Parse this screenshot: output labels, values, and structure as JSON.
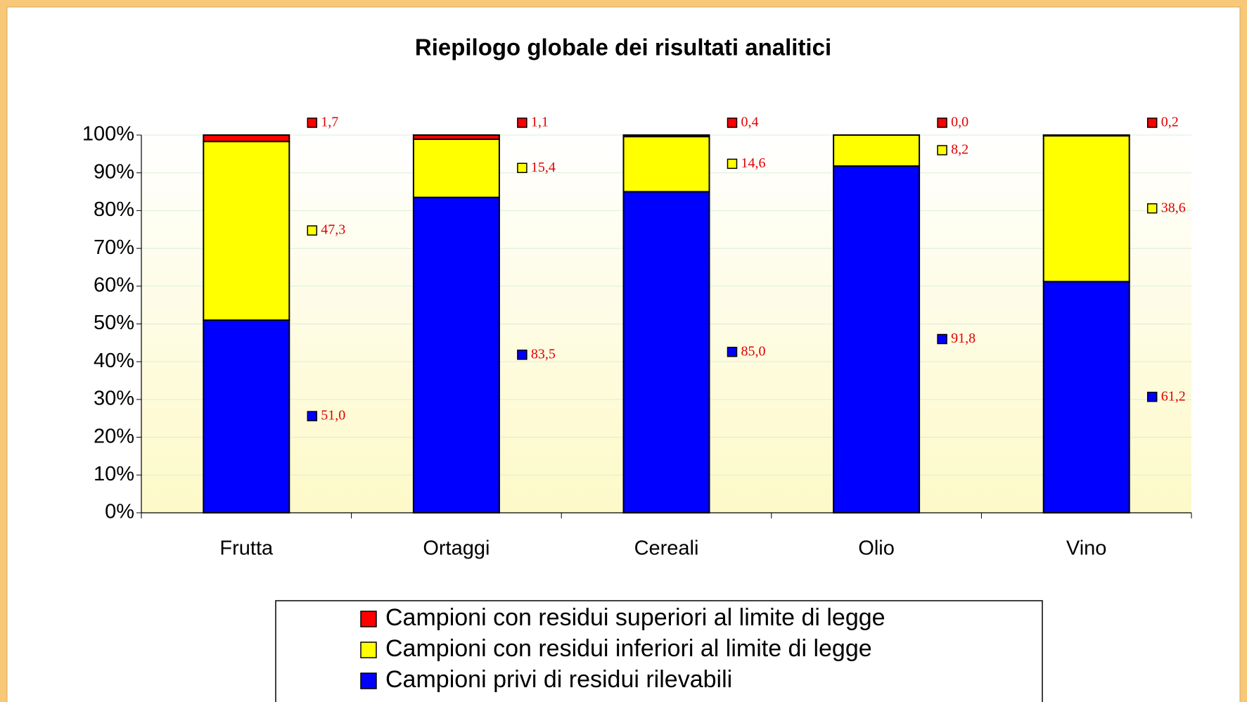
{
  "chart_data": {
    "type": "stacked_bar",
    "title": "Riepilogo globale dei risultati analitici",
    "categories": [
      "Frutta",
      "Ortaggi",
      "Cereali",
      "Olio",
      "Vino"
    ],
    "series": [
      {
        "name": "Campioni privi di residui rilevabili",
        "color": "#0000ff",
        "values": [
          51.0,
          83.5,
          85.0,
          91.8,
          61.2
        ],
        "value_labels": [
          "51,0",
          "83,5",
          "85,0",
          "91,8",
          "61,2"
        ]
      },
      {
        "name": "Campioni con residui inferiori al limite di legge",
        "color": "#ffff00",
        "values": [
          47.3,
          15.4,
          14.6,
          8.2,
          38.6
        ],
        "value_labels": [
          "47,3",
          "15,4",
          "14,6",
          "8,2",
          "38,6"
        ]
      },
      {
        "name": "Campioni con residui superiori al limite di legge",
        "color": "#ff0000",
        "values": [
          1.7,
          1.1,
          0.4,
          0.0,
          0.2
        ],
        "value_labels": [
          "1,7",
          "1,1",
          "0,4",
          "0,0",
          "0,2"
        ]
      }
    ],
    "ylim": [
      0,
      100
    ],
    "yticks": [
      {
        "value": 0,
        "label": "0%"
      },
      {
        "value": 10,
        "label": "10%"
      },
      {
        "value": 20,
        "label": "20%"
      },
      {
        "value": 30,
        "label": "30%"
      },
      {
        "value": 40,
        "label": "40%"
      },
      {
        "value": 50,
        "label": "50%"
      },
      {
        "value": 60,
        "label": "60%"
      },
      {
        "value": 70,
        "label": "70%"
      },
      {
        "value": 80,
        "label": "80%"
      },
      {
        "value": 90,
        "label": "90%"
      },
      {
        "value": 100,
        "label": "100%"
      }
    ],
    "grid": true
  }
}
